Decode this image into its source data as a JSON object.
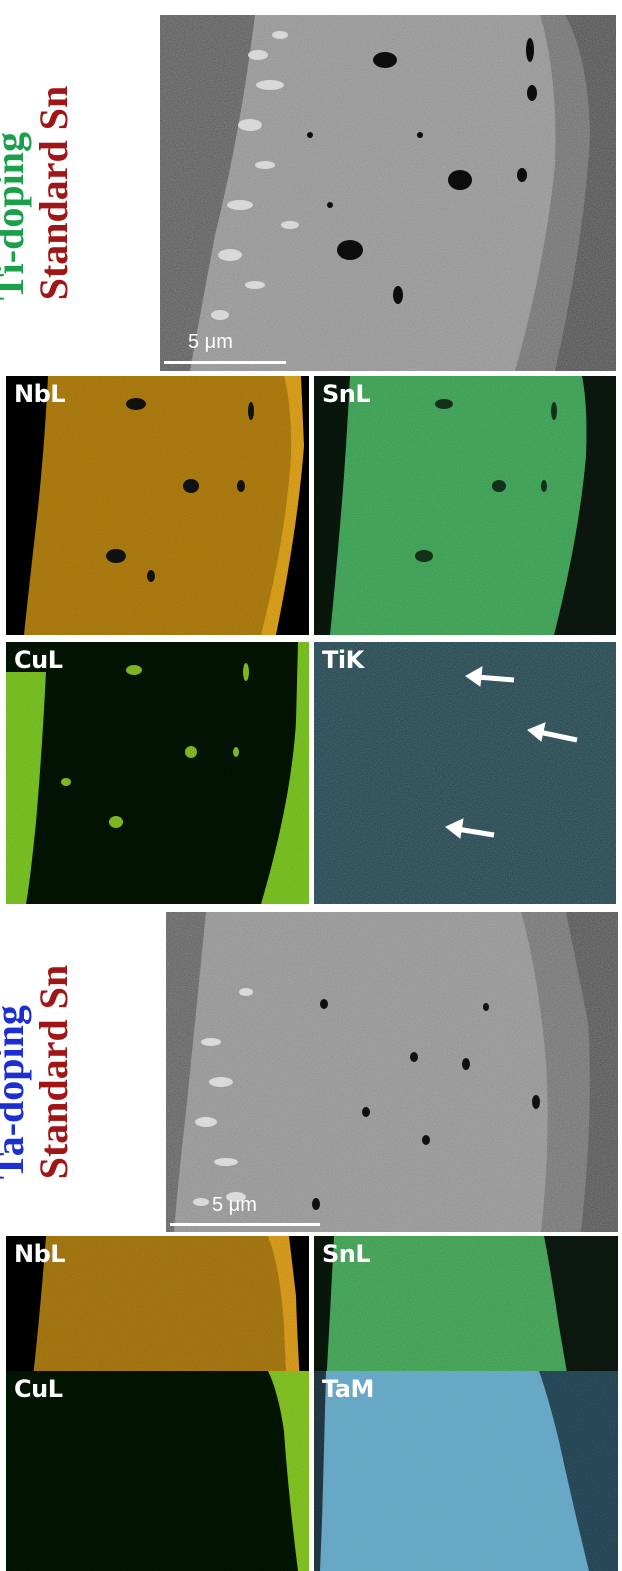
{
  "section_1": {
    "label_line_1": "Ti-doping",
    "label_line_2": "Standard Sn",
    "label_line_1_color": "#1aa04a",
    "label_line_2_color": "#a01515",
    "sem": {
      "scale_text": "5 μm"
    },
    "maps": {
      "nb": "NbL",
      "sn": "SnL",
      "cu": "CuL",
      "dopant": "TiK"
    },
    "colors": {
      "nb": "#c08a12",
      "nb_rim": "#f2b21f",
      "sn": "#4fbf6a",
      "cu": "#8fd02a",
      "ti": "#1f5060"
    }
  },
  "section_2": {
    "label_line_1": "Ta-doping",
    "label_line_2": "Standard Sn",
    "label_line_1_color": "#1c2fd0",
    "label_line_2_color": "#a01515",
    "sem": {
      "scale_text": "5 μm"
    },
    "maps": {
      "nb": "NbL",
      "sn": "SnL",
      "cu": "CuL",
      "dopant": "TaM"
    },
    "colors": {
      "nb": "#b98514",
      "nb_rim": "#f0ad20",
      "sn": "#55c06a",
      "cu": "#9ad22a",
      "ta": "#62a8c8"
    }
  }
}
